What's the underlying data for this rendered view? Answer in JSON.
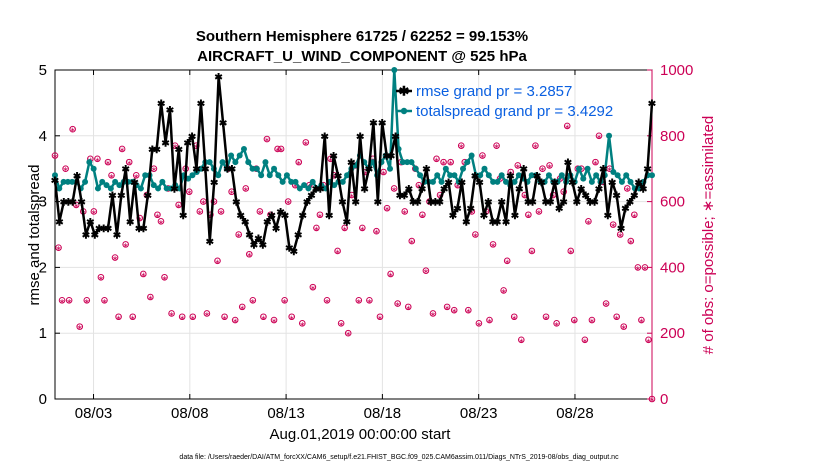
{
  "chart_data": {
    "type": "line",
    "title_line1": "Southern Hemisphere 61725 / 62252 = 99.153%",
    "title_line2": "AIRCRAFT_U_WIND_COMPONENT @ 525 hPa",
    "xlabel": "Aug.01,2019 00:00:00 start",
    "ylabel_left": "rmse and totalspread",
    "ylabel_right": "# of obs: o=possible; ∗=assimilated",
    "footnote": "data file: /Users/raeder/DAI/ATM_forcXX/CAM6_setup/f.e21.FHIST_BGC.f09_025.CAM6assim.011/Diags_NTrS_2019-08/obs_diag_output.nc",
    "xlim": [
      1.0,
      32.0
    ],
    "ylim_left": [
      0,
      5
    ],
    "ylim_right": [
      0,
      1000
    ],
    "x_ticks": [
      3,
      8,
      13,
      18,
      23,
      28
    ],
    "x_tick_labels": [
      "08/03",
      "08/08",
      "08/13",
      "08/18",
      "08/23",
      "08/28"
    ],
    "y_left_ticks": [
      "0",
      "1",
      "2",
      "3",
      "4",
      "5"
    ],
    "y_right_ticks": [
      "0",
      "200",
      "400",
      "600",
      "800",
      "1000"
    ],
    "grid": true,
    "colors": {
      "rmse": "#000000",
      "spread": "#008080",
      "obs": "#cc0055",
      "legend_text": "#0a5fe0"
    },
    "series": [
      {
        "name": "rmse grand pr = 3.2857",
        "axis": "left",
        "marker": "asterisk",
        "values": [
          3.33,
          2.7,
          3.0,
          3.0,
          3.0,
          3.4,
          3.0,
          2.5,
          2.7,
          2.5,
          2.6,
          2.6,
          2.6,
          3.1,
          2.5,
          3.1,
          3.5,
          2.7,
          3.3,
          2.6,
          2.6,
          3.1,
          3.8,
          3.8,
          4.5,
          3.9,
          4.4,
          3.2,
          3.8,
          2.8,
          3.9,
          4.0,
          3.5,
          4.5,
          3.5,
          2.4,
          3.3,
          4.9,
          4.2,
          3.5,
          3.5,
          3.0,
          2.8,
          2.7,
          2.5,
          2.35,
          2.45,
          2.35,
          2.7,
          2.8,
          2.6,
          2.85,
          2.8,
          2.3,
          2.25,
          2.5,
          2.8,
          3.0,
          3.1,
          3.2,
          3.2,
          4.0,
          2.8,
          3.7,
          3.4,
          3.0,
          2.7,
          3.6,
          3.0,
          4.0,
          3.2,
          3.5,
          4.2,
          3.0,
          4.2,
          3.7,
          3.7,
          4.0,
          3.1,
          3.1,
          3.2,
          3.0,
          3.0,
          3.2,
          3.5,
          3.0,
          3.0,
          3.0,
          3.2,
          3.3,
          2.8,
          2.9,
          3.3,
          2.7,
          2.9,
          3.4,
          3.3,
          2.8,
          3.0,
          2.7,
          2.7,
          3.0,
          2.7,
          3.4,
          2.8,
          3.2,
          3.5,
          3.0,
          3.0,
          3.4,
          3.3,
          3.0,
          3.0,
          3.3,
          2.9,
          3.0,
          3.6,
          3.3,
          3.0,
          3.2,
          3.1,
          3.0,
          3.0,
          3.2,
          3.5,
          2.8,
          3.3,
          3.1,
          2.6,
          2.9,
          3.0,
          3.1,
          3.3,
          3.2,
          3.5,
          4.5
        ]
      },
      {
        "name": "totalspread grand pr = 3.4292",
        "axis": "left",
        "marker": "dot",
        "values": [
          3.4,
          3.2,
          3.3,
          3.3,
          3.3,
          3.3,
          3.2,
          3.3,
          3.6,
          3.5,
          3.2,
          3.3,
          3.25,
          3.2,
          3.3,
          3.25,
          3.3,
          3.3,
          3.3,
          3.25,
          3.2,
          3.4,
          3.4,
          3.25,
          3.2,
          3.3,
          3.2,
          3.2,
          3.25,
          3.2,
          3.4,
          3.35,
          3.4,
          3.45,
          3.5,
          3.6,
          3.6,
          3.5,
          3.4,
          3.6,
          3.5,
          3.7,
          3.6,
          3.7,
          3.8,
          3.6,
          3.5,
          3.5,
          3.4,
          3.6,
          3.4,
          3.5,
          3.4,
          3.3,
          3.4,
          3.3,
          3.3,
          3.2,
          3.25,
          3.2,
          3.3,
          3.2,
          3.25,
          3.2,
          3.3,
          3.25,
          3.3,
          3.3,
          3.4,
          3.5,
          3.55,
          3.7,
          3.6,
          3.5,
          3.6,
          3.4,
          3.6,
          3.7,
          3.5,
          5.0,
          3.8,
          3.6,
          3.6,
          3.6,
          3.5,
          3.4,
          3.3,
          3.3,
          3.3,
          3.4,
          3.3,
          3.5,
          3.4,
          3.4,
          3.3,
          3.5,
          3.6,
          3.7,
          3.4,
          3.4,
          3.5,
          3.4,
          3.3,
          3.3,
          3.4,
          3.3,
          3.25,
          3.3,
          3.4,
          3.35,
          3.3,
          3.4,
          3.4,
          3.3,
          3.3,
          3.4,
          3.3,
          3.3,
          3.4,
          3.3,
          3.4,
          3.3,
          3.5,
          3.35,
          3.5,
          3.3,
          3.4,
          3.3,
          3.4,
          4.0,
          3.45,
          3.4,
          3.3,
          3.4,
          3.3,
          3.2,
          3.2,
          3.3,
          3.4,
          3.4
        ]
      },
      {
        "name": "obs possible",
        "axis": "right",
        "marker": "circle",
        "values": [
          740,
          460,
          300,
          700,
          300,
          820,
          590,
          220,
          570,
          300,
          730,
          570,
          730,
          370,
          300,
          720,
          680,
          430,
          250,
          760,
          470,
          720,
          250,
          680,
          550,
          380,
          620,
          310,
          700,
          560,
          540,
          370,
          640,
          260,
          770,
          590,
          250,
          700,
          630,
          250,
          770,
          570,
          600,
          260,
          560,
          600,
          420,
          570,
          250,
          700,
          630,
          240,
          500,
          280,
          640,
          440,
          300,
          700,
          570,
          250,
          790,
          560,
          240,
          760,
          760,
          300,
          600,
          250,
          650,
          720,
          230,
          780,
          650,
          340,
          520,
          560,
          650,
          300,
          730,
          680,
          450,
          230,
          520,
          200,
          620,
          710,
          300,
          520,
          690,
          300,
          730,
          510,
          250,
          690,
          580,
          380,
          640,
          290,
          720,
          570,
          280,
          480,
          700,
          650,
          560,
          390,
          600,
          260,
          730,
          620,
          720,
          280,
          720,
          270,
          650,
          770,
          720,
          270,
          570,
          500,
          230,
          740,
          570,
          240,
          470,
          770,
          670,
          330,
          420,
          690,
          250,
          710,
          180,
          620,
          560,
          450,
          770,
          570,
          700,
          250,
          710,
          620,
          230,
          670,
          630,
          830,
          450,
          240,
          700,
          700,
          180,
          540,
          240,
          720,
          800,
          660,
          290,
          700,
          530,
          250,
          500,
          220,
          640,
          480,
          560,
          400,
          240,
          400,
          180,
          0
        ]
      }
    ]
  },
  "legend": {
    "rmse_label": "rmse grand pr = 3.2857",
    "spread_label": "totalspread grand pr = 3.4292"
  }
}
